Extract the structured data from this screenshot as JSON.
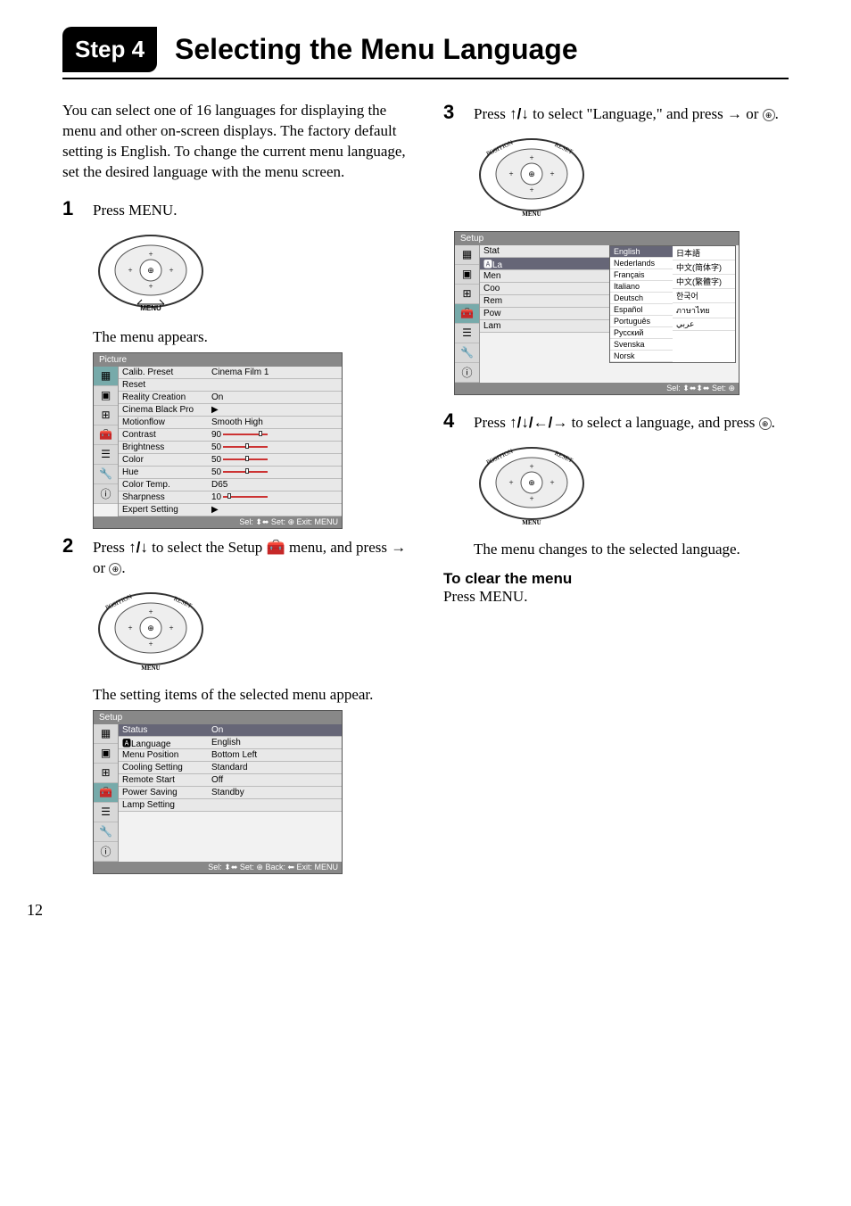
{
  "header": {
    "step_badge": "Step 4",
    "title": "Selecting the Menu Language"
  },
  "left": {
    "intro": "You can select one of 16 languages for displaying the menu and other on-screen displays. The factory default setting is English. To change the current menu language, set the desired language with the menu screen.",
    "step1": {
      "num": "1",
      "text": "Press MENU."
    },
    "caption1": "The menu appears.",
    "picture_menu": {
      "title": "Picture",
      "rows": [
        {
          "k": "Calib. Preset",
          "v": "Cinema Film 1"
        },
        {
          "k": "Reset",
          "v": ""
        },
        {
          "k": "Reality Creation",
          "v": "On"
        },
        {
          "k": "Cinema Black Pro",
          "v": "▶"
        },
        {
          "k": "Motionflow",
          "v": "Smooth High"
        },
        {
          "k": "Contrast",
          "v": "90",
          "slider": true,
          "pos": 40
        },
        {
          "k": "Brightness",
          "v": "50",
          "slider": true,
          "pos": 25
        },
        {
          "k": "Color",
          "v": "50",
          "slider": true,
          "pos": 25
        },
        {
          "k": "Hue",
          "v": "50",
          "slider": true,
          "pos": 25
        },
        {
          "k": "Color Temp.",
          "v": "D65"
        },
        {
          "k": "Sharpness",
          "v": "10",
          "slider": true,
          "pos": 5
        },
        {
          "k": "Expert Setting",
          "v": "▶"
        }
      ],
      "footer": "Sel: ⬍⬌   Set: ⊕   Exit: MENU"
    },
    "step2": {
      "num": "2",
      "text_a": "Press ",
      "text_b": " to select the Setup ",
      "text_c": " menu, and press ",
      "text_d": " or ",
      "text_e": ".",
      "arrows": "↑/↓"
    },
    "caption2": "The setting items of the selected menu appear.",
    "setup_menu": {
      "title": "Setup",
      "rows": [
        {
          "k": "Status",
          "v": "On",
          "selected": true
        },
        {
          "k": "🅰Language",
          "v": "English"
        },
        {
          "k": "Menu Position",
          "v": "Bottom Left"
        },
        {
          "k": "Cooling Setting",
          "v": "Standard"
        },
        {
          "k": "Remote Start",
          "v": "Off"
        },
        {
          "k": "Power Saving",
          "v": "Standby"
        },
        {
          "k": "Lamp Setting",
          "v": ""
        }
      ],
      "footer": "Sel: ⬍⬌   Set: ⊕   Back: ⬅   Exit: MENU"
    }
  },
  "right": {
    "step3": {
      "num": "3",
      "text_a": "Press ",
      "arrows": "↑/↓",
      "text_b": " to select \"Language,\" and press ",
      "text_c": " or ",
      "text_d": "."
    },
    "lang_menu": {
      "title": "Setup",
      "left_rows": [
        {
          "k": "Stat"
        },
        {
          "k": "🅰La",
          "selected": true
        },
        {
          "k": "Men"
        },
        {
          "k": "Coo"
        },
        {
          "k": "Rem"
        },
        {
          "k": "Pow"
        },
        {
          "k": "Lam"
        }
      ],
      "popup_left": [
        "English",
        "Nederlands",
        "Français",
        "Italiano",
        "Deutsch",
        "Español",
        "Português",
        "Русский",
        "Svenska",
        "Norsk"
      ],
      "popup_right": [
        "日本語",
        "中文(简体字)",
        "中文(繁體字)",
        "한국어",
        "ภาษาไทย",
        "عربي"
      ],
      "selected_lang": "English",
      "footer": "Sel: ⬍⬌⬍⬌   Set: ⊕"
    },
    "step4": {
      "num": "4",
      "text_a": "Press ",
      "arrows": "↑/↓/←/→",
      "text_b": " to select a language, and press ",
      "text_c": "."
    },
    "caption4": "The menu changes to the selected language.",
    "clear_heading": "To clear the menu",
    "clear_text": "Press MENU."
  },
  "page_number": "12",
  "colors": {
    "toolbox_active": "#7aa5a0",
    "selected_row": "#5c6b80",
    "slider": "#cc3333"
  }
}
